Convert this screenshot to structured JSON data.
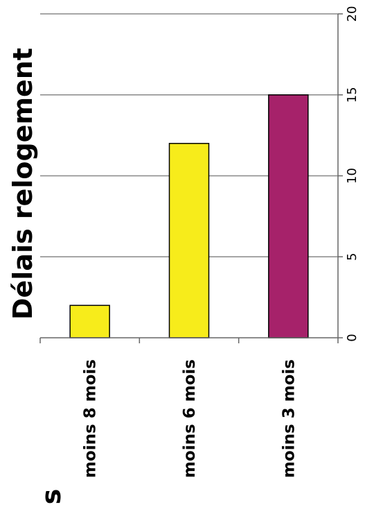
{
  "chart_data": {
    "type": "bar",
    "title": "Délais relogement",
    "categories": [
      "moins 8 mois",
      "moins 6 mois",
      "moins 3 mois"
    ],
    "values": [
      2,
      12,
      15
    ],
    "bar_colors": [
      "#f7ec1b",
      "#f7ec1b",
      "#a6226a"
    ],
    "ylim": [
      0,
      20
    ],
    "yticks": [
      "0",
      "5",
      "10",
      "15",
      "20"
    ],
    "grid": true,
    "orientation": "rotated-90-clockwise"
  },
  "fragment_text": "s"
}
